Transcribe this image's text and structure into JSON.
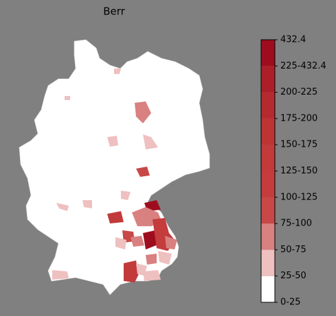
{
  "title": "Berr",
  "colorbar": {
    "labels": [
      "0-25",
      "25-50",
      "50-75",
      "75-100",
      "100-125",
      "125-150",
      "150-175",
      "175-200",
      "200-225",
      "225-432.4",
      "432.4"
    ],
    "colors": [
      "#ffffff",
      "#efc0c0",
      "#d98080",
      "#c84848",
      "#c43c3c",
      "#c23a3a",
      "#bd3434",
      "#b52a2f",
      "#ad1f28",
      "#9e0d1e"
    ]
  }
}
